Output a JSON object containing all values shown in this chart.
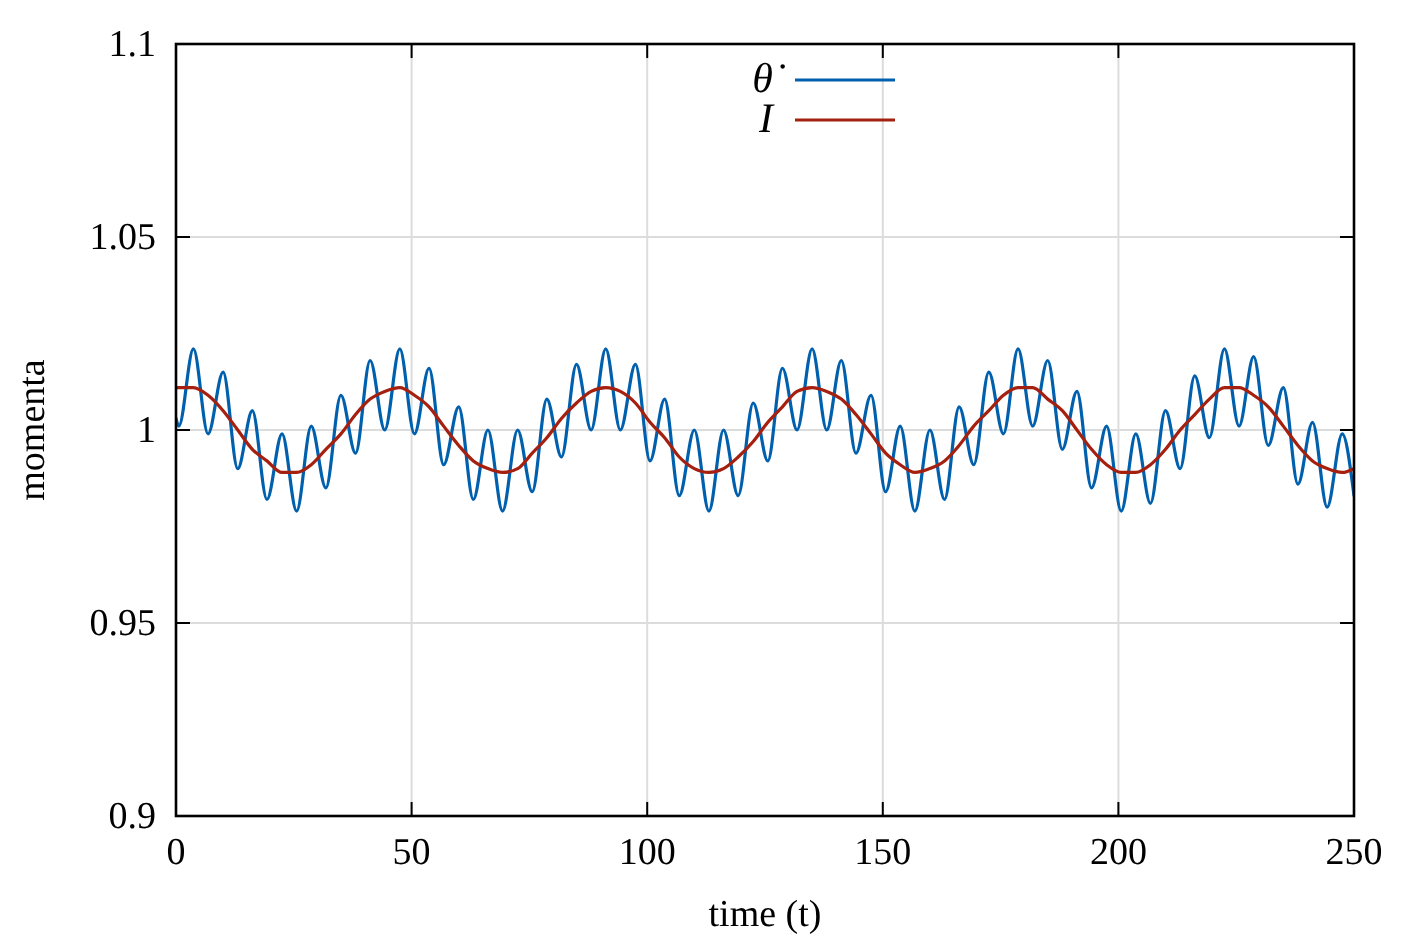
{
  "chart_data": {
    "type": "line",
    "xlabel": "time (t)",
    "ylabel": "momenta",
    "x": [
      0,
      0.6,
      3.7,
      6.8,
      10,
      13.1,
      16.2,
      19.3,
      22.5,
      25.6,
      28.7,
      31.8,
      35,
      38.1,
      41.2,
      44.3,
      47.5,
      50.6,
      53.7,
      56.8,
      60,
      63.1,
      66.2,
      69.3,
      72.5,
      75.6,
      78.7,
      81.8,
      85,
      88.1,
      91.2,
      94.3,
      97.5,
      100.6,
      103.7,
      106.8,
      110,
      113.1,
      116.2,
      119.3,
      122.5,
      125.6,
      128.7,
      131.8,
      135,
      138.1,
      141.2,
      144.3,
      147.5,
      150.6,
      153.7,
      156.8,
      160,
      163.1,
      166.2,
      169.3,
      172.5,
      175.6,
      178.7,
      181.8,
      185,
      188.1,
      191.2,
      194.3,
      197.5,
      200.6,
      203.7,
      206.8,
      210,
      213.1,
      216.2,
      219.3,
      222.5,
      225.6,
      228.7,
      231.8,
      235,
      238.1,
      241.2,
      244.3,
      247.5,
      250
    ],
    "series": [
      {
        "name": "θ̇",
        "color": "#0060ad",
        "values": [
          1.003,
          1.001,
          1.021,
          0.999,
          1.015,
          0.99,
          1.005,
          0.982,
          0.999,
          0.979,
          1.001,
          0.985,
          1.009,
          0.994,
          1.018,
          1.0,
          1.021,
          0.999,
          1.016,
          0.991,
          1.006,
          0.982,
          1.0,
          0.979,
          1.0,
          0.984,
          1.008,
          0.993,
          1.017,
          1.0,
          1.021,
          1.0,
          1.017,
          0.992,
          1.008,
          0.983,
          1.0,
          0.979,
          1.0,
          0.983,
          1.007,
          0.992,
          1.016,
          1.0,
          1.021,
          1.0,
          1.018,
          0.994,
          1.009,
          0.984,
          1.001,
          0.979,
          1.0,
          0.982,
          1.006,
          0.991,
          1.015,
          0.999,
          1.021,
          1.001,
          1.018,
          0.995,
          1.01,
          0.985,
          1.001,
          0.979,
          0.999,
          0.981,
          1.005,
          0.99,
          1.014,
          0.998,
          1.021,
          1.001,
          1.019,
          0.996,
          1.011,
          0.986,
          1.002,
          0.98,
          0.999,
          0.983
        ]
      },
      {
        "name": "I",
        "color": "#a5200f",
        "values": [
          1.011,
          1.011,
          1.011,
          1.009,
          1.005,
          1.0,
          0.995,
          0.992,
          0.989,
          0.989,
          0.991,
          0.995,
          0.999,
          1.004,
          1.008,
          1.01,
          1.011,
          1.009,
          1.006,
          1.001,
          0.996,
          0.992,
          0.99,
          0.989,
          0.99,
          0.994,
          0.998,
          1.003,
          1.007,
          1.01,
          1.011,
          1.01,
          1.007,
          1.002,
          0.998,
          0.993,
          0.99,
          0.989,
          0.99,
          0.993,
          0.997,
          1.002,
          1.006,
          1.01,
          1.011,
          1.01,
          1.008,
          1.004,
          0.999,
          0.994,
          0.991,
          0.989,
          0.99,
          0.992,
          0.996,
          1.001,
          1.005,
          1.009,
          1.011,
          1.011,
          1.008,
          1.005,
          1.0,
          0.995,
          0.991,
          0.989,
          0.989,
          0.991,
          0.995,
          1.0,
          1.004,
          1.008,
          1.011,
          1.011,
          1.009,
          1.006,
          1.001,
          0.996,
          0.992,
          0.99,
          0.989,
          0.99
        ]
      }
    ],
    "xlim": [
      0,
      250
    ],
    "xticks": [
      0,
      50,
      100,
      150,
      200,
      250
    ],
    "ylim": [
      0.9,
      1.1
    ],
    "yticks": [
      0.9,
      0.95,
      1,
      1.05,
      1.1
    ],
    "grid": true,
    "legend": "top",
    "line_style": "solid",
    "marker": "none"
  }
}
